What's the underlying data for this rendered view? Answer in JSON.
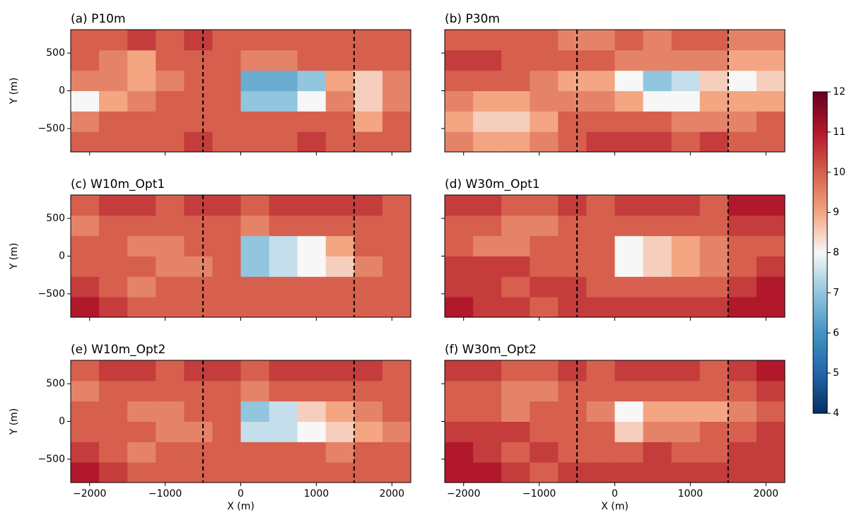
{
  "chart_data": [
    {
      "type": "heatmap",
      "title": "(a) P10m",
      "ylabel": "Y (m)",
      "xlim": [
        -2250,
        2250
      ],
      "ylim": [
        -810,
        810
      ],
      "xticks": [
        {
          "value": -2000,
          "label": "−2000"
        },
        {
          "value": -1000,
          "label": "−1000"
        },
        0,
        1000,
        2000
      ],
      "yticks": [
        {
          "value": -500,
          "label": "−500"
        },
        0,
        500
      ],
      "xbins": [
        -2250,
        -1875,
        -1500,
        -1125,
        -750,
        -375,
        0,
        375,
        750,
        1125,
        1500,
        1875,
        2250
      ],
      "ybins": [
        -810,
        -540,
        -270,
        0,
        270,
        540,
        810
      ],
      "vlines": [
        -500,
        1500
      ],
      "values": [
        [
          10,
          10,
          10,
          10,
          10.5,
          10,
          10,
          10,
          10.5,
          10,
          10,
          10
        ],
        [
          9.5,
          10,
          10,
          10,
          10,
          10,
          10,
          10,
          10,
          10,
          9,
          10
        ],
        [
          8,
          9,
          9.5,
          10,
          10,
          10,
          7,
          7,
          8,
          9.5,
          8.5,
          9.5
        ],
        [
          9.5,
          9.5,
          9,
          9.5,
          10,
          10,
          6.5,
          6.5,
          7,
          9,
          8.5,
          9.5
        ],
        [
          10,
          9.5,
          9,
          10,
          10,
          10,
          9.5,
          9.5,
          10,
          10,
          10,
          10
        ],
        [
          10,
          10,
          10.5,
          10,
          10.5,
          10,
          10,
          10,
          10,
          10,
          10,
          10
        ]
      ]
    },
    {
      "type": "heatmap",
      "title": "(b) P30m",
      "xlim": [
        -2250,
        2250
      ],
      "ylim": [
        -810,
        810
      ],
      "xticks": [
        {
          "value": -2000,
          "label": "−2000"
        },
        {
          "value": -1000,
          "label": "−1000"
        },
        0,
        1000,
        2000
      ],
      "yticks": [
        {
          "value": -500,
          "label": "−500"
        },
        0,
        500
      ],
      "xbins": [
        -2250,
        -1875,
        -1500,
        -1125,
        -750,
        -375,
        0,
        375,
        750,
        1125,
        1500,
        1875,
        2250
      ],
      "ybins": [
        -810,
        -540,
        -270,
        0,
        270,
        540,
        810
      ],
      "vlines": [
        -500,
        1500
      ],
      "values": [
        [
          9.5,
          9,
          9,
          9.5,
          10,
          10.5,
          10.5,
          10.5,
          10,
          10.5,
          10,
          10
        ],
        [
          9,
          8.5,
          8.5,
          9,
          10,
          10,
          10,
          10,
          9.5,
          9.5,
          9.5,
          10
        ],
        [
          9.5,
          9,
          9,
          9.5,
          9.5,
          9.5,
          9,
          8,
          8,
          9,
          9,
          9
        ],
        [
          10,
          10,
          10,
          9.5,
          9,
          9,
          8,
          7,
          7.5,
          8.5,
          8,
          8.5
        ],
        [
          10.5,
          10.5,
          10,
          10,
          10,
          10,
          9.5,
          9.5,
          9.5,
          9.5,
          9,
          9
        ],
        [
          10,
          10,
          10,
          10,
          9.5,
          9.5,
          10,
          9.5,
          10,
          10,
          9.5,
          9.5
        ]
      ]
    },
    {
      "type": "heatmap",
      "title": "(c) W10m_Opt1",
      "ylabel": "Y (m)",
      "xlim": [
        -2250,
        2250
      ],
      "ylim": [
        -810,
        810
      ],
      "xticks": [
        {
          "value": -2000,
          "label": "−2000"
        },
        {
          "value": -1000,
          "label": "−1000"
        },
        0,
        1000,
        2000
      ],
      "yticks": [
        {
          "value": -500,
          "label": "−500"
        },
        0,
        500
      ],
      "xbins": [
        -2250,
        -1875,
        -1500,
        -1125,
        -750,
        -375,
        0,
        375,
        750,
        1125,
        1500,
        1875,
        2250
      ],
      "ybins": [
        -810,
        -540,
        -270,
        0,
        270,
        540,
        810
      ],
      "vlines": [
        -500,
        1500
      ],
      "values": [
        [
          11,
          10.5,
          10,
          10,
          10,
          10,
          10,
          10,
          10,
          10,
          10,
          10
        ],
        [
          10.5,
          10,
          9.5,
          10,
          10,
          10,
          10,
          10,
          10,
          10,
          10,
          10
        ],
        [
          10,
          10,
          10,
          9.5,
          9.5,
          10,
          7,
          7.5,
          8,
          8.5,
          9.5,
          10
        ],
        [
          10,
          10,
          9.5,
          9.5,
          10,
          10,
          7,
          7.5,
          8,
          9,
          10,
          10
        ],
        [
          9.5,
          10,
          10,
          10,
          10,
          10,
          9.5,
          10,
          10,
          10,
          10,
          10
        ],
        [
          10,
          10.5,
          10.5,
          10,
          10.5,
          10.5,
          10,
          10.5,
          10.5,
          10.5,
          10.5,
          10
        ]
      ]
    },
    {
      "type": "heatmap",
      "title": "(d) W30m_Opt1",
      "xlim": [
        -2250,
        2250
      ],
      "ylim": [
        -810,
        810
      ],
      "xticks": [
        {
          "value": -2000,
          "label": "−2000"
        },
        {
          "value": -1000,
          "label": "−1000"
        },
        0,
        1000,
        2000
      ],
      "yticks": [
        {
          "value": -500,
          "label": "−500"
        },
        0,
        500
      ],
      "xbins": [
        -2250,
        -1875,
        -1500,
        -1125,
        -750,
        -375,
        0,
        375,
        750,
        1125,
        1500,
        1875,
        2250
      ],
      "ybins": [
        -810,
        -540,
        -270,
        0,
        270,
        540,
        810
      ],
      "vlines": [
        -500,
        1500
      ],
      "values": [
        [
          11,
          10.5,
          10.5,
          10,
          10.5,
          10.5,
          10.5,
          10.5,
          10.5,
          10.5,
          11,
          11
        ],
        [
          10.5,
          10.5,
          10,
          10.5,
          10.5,
          10,
          10,
          10,
          10,
          10,
          10.5,
          11
        ],
        [
          10.5,
          10.5,
          10.5,
          10,
          10,
          10,
          8,
          8.5,
          9,
          9.5,
          10,
          10.5
        ],
        [
          10,
          9.5,
          9.5,
          10,
          10,
          10,
          8,
          8.5,
          9,
          9.5,
          10,
          10
        ],
        [
          10,
          10,
          9.5,
          9.5,
          10,
          10,
          10,
          10,
          10,
          10,
          10.5,
          10.5
        ],
        [
          10.5,
          10.5,
          10,
          10,
          10.5,
          10,
          10.5,
          10.5,
          10.5,
          10,
          11,
          11
        ]
      ]
    },
    {
      "type": "heatmap",
      "title": "(e) W10m_Opt2",
      "ylabel": "Y (m)",
      "xlabel": "X (m)",
      "xlim": [
        -2250,
        2250
      ],
      "ylim": [
        -810,
        810
      ],
      "xticks": [
        {
          "value": -2000,
          "label": "−2000"
        },
        {
          "value": -1000,
          "label": "−1000"
        },
        0,
        1000,
        2000
      ],
      "yticks": [
        {
          "value": -500,
          "label": "−500"
        },
        0,
        500
      ],
      "xbins": [
        -2250,
        -1875,
        -1500,
        -1125,
        -750,
        -375,
        0,
        375,
        750,
        1125,
        1500,
        1875,
        2250
      ],
      "ybins": [
        -810,
        -540,
        -270,
        0,
        270,
        540,
        810
      ],
      "vlines": [
        -500,
        1500
      ],
      "values": [
        [
          11,
          10.5,
          10,
          10,
          10,
          10,
          10,
          10,
          10,
          10,
          10,
          10
        ],
        [
          10.5,
          10,
          9.5,
          10,
          10,
          10,
          10,
          10,
          10,
          9.5,
          10,
          10
        ],
        [
          10,
          10,
          10,
          9.5,
          9.5,
          10,
          7.5,
          7.5,
          8,
          8.5,
          9,
          9.5
        ],
        [
          10,
          10,
          9.5,
          9.5,
          10,
          10,
          7,
          7.5,
          8.5,
          9,
          9.5,
          10
        ],
        [
          9.5,
          10,
          10,
          10,
          10,
          10,
          9.5,
          10,
          10,
          10,
          10,
          10
        ],
        [
          10,
          10.5,
          10.5,
          10,
          10.5,
          10.5,
          10,
          10.5,
          10.5,
          10.5,
          10.5,
          10
        ]
      ]
    },
    {
      "type": "heatmap",
      "title": "(f) W30m_Opt2",
      "xlabel": "X (m)",
      "xlim": [
        -2250,
        2250
      ],
      "ylim": [
        -810,
        810
      ],
      "xticks": [
        {
          "value": -2000,
          "label": "−2000"
        },
        {
          "value": -1000,
          "label": "−1000"
        },
        0,
        1000,
        2000
      ],
      "yticks": [
        {
          "value": -500,
          "label": "−500"
        },
        0,
        500
      ],
      "xbins": [
        -2250,
        -1875,
        -1500,
        -1125,
        -750,
        -375,
        0,
        375,
        750,
        1125,
        1500,
        1875,
        2250
      ],
      "ybins": [
        -810,
        -540,
        -270,
        0,
        270,
        540,
        810
      ],
      "vlines": [
        -500,
        1500
      ],
      "values": [
        [
          11,
          11,
          10.5,
          10,
          10.5,
          10.5,
          10.5,
          10.5,
          10.5,
          10.5,
          10.5,
          10.5
        ],
        [
          11,
          10.5,
          10,
          10.5,
          10,
          10,
          10,
          10.5,
          10,
          10,
          10.5,
          10.5
        ],
        [
          10.5,
          10.5,
          10.5,
          10,
          10,
          10,
          8.5,
          9.5,
          9.5,
          10,
          10,
          10.5
        ],
        [
          10,
          10,
          9.5,
          10,
          10,
          9.5,
          8,
          9,
          9,
          9,
          9.5,
          10
        ],
        [
          10,
          10,
          9.5,
          9.5,
          10,
          10,
          10,
          10,
          10,
          10,
          10,
          10.5
        ],
        [
          10.5,
          10.5,
          10,
          10,
          10.5,
          10,
          10.5,
          10.5,
          10.5,
          10,
          10.5,
          11
        ]
      ]
    },
    {
      "type": "colorbar",
      "colormap": "RdBu_r",
      "zlim": [
        4,
        12
      ],
      "zticks": [
        4,
        5,
        6,
        7,
        8,
        9,
        10,
        11,
        12
      ]
    }
  ]
}
